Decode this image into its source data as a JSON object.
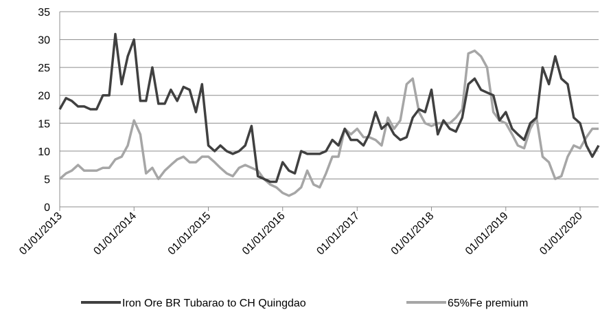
{
  "chart_data": {
    "type": "line",
    "x": [
      "01/01/2013",
      "01/02/2013",
      "01/03/2013",
      "01/04/2013",
      "01/05/2013",
      "01/06/2013",
      "01/07/2013",
      "01/08/2013",
      "01/09/2013",
      "01/10/2013",
      "01/11/2013",
      "01/12/2013",
      "01/01/2014",
      "01/02/2014",
      "01/03/2014",
      "01/04/2014",
      "01/05/2014",
      "01/06/2014",
      "01/07/2014",
      "01/08/2014",
      "01/09/2014",
      "01/10/2014",
      "01/11/2014",
      "01/12/2014",
      "01/01/2015",
      "01/02/2015",
      "01/03/2015",
      "01/04/2015",
      "01/05/2015",
      "01/06/2015",
      "01/07/2015",
      "01/08/2015",
      "01/09/2015",
      "01/10/2015",
      "01/11/2015",
      "01/12/2015",
      "01/01/2016",
      "01/02/2016",
      "01/03/2016",
      "01/04/2016",
      "01/05/2016",
      "01/06/2016",
      "01/07/2016",
      "01/08/2016",
      "01/09/2016",
      "01/10/2016",
      "01/11/2016",
      "01/12/2016",
      "01/01/2017",
      "01/02/2017",
      "01/03/2017",
      "01/04/2017",
      "01/05/2017",
      "01/06/2017",
      "01/07/2017",
      "01/08/2017",
      "01/09/2017",
      "01/10/2017",
      "01/11/2017",
      "01/12/2017",
      "01/01/2018",
      "01/02/2018",
      "01/03/2018",
      "01/04/2018",
      "01/05/2018",
      "01/06/2018",
      "01/07/2018",
      "01/08/2018",
      "01/09/2018",
      "01/10/2018",
      "01/11/2018",
      "01/12/2018",
      "01/01/2019",
      "01/02/2019",
      "01/03/2019",
      "01/04/2019",
      "01/05/2019",
      "01/06/2019",
      "01/07/2019",
      "01/08/2019",
      "01/09/2019",
      "01/10/2019",
      "01/11/2019",
      "01/12/2019",
      "01/01/2020",
      "01/02/2020",
      "01/03/2020",
      "01/04/2020"
    ],
    "series": [
      {
        "name": "Iron Ore BR Tubarao to CH Quingdao",
        "color": "#404040",
        "values": [
          17.5,
          19.5,
          19,
          18,
          18,
          17.5,
          17.5,
          20,
          20,
          31,
          22,
          27,
          30,
          19,
          19,
          25,
          18.5,
          18.5,
          21,
          19,
          21.5,
          21,
          17,
          22,
          11,
          10,
          11,
          10,
          9.5,
          10,
          11,
          14.5,
          5.5,
          5,
          4.5,
          4.5,
          8,
          6.5,
          6,
          10,
          9.5,
          9.5,
          9.5,
          10,
          12,
          11,
          14,
          12,
          12,
          11,
          13,
          17,
          14,
          15,
          13,
          12,
          12.5,
          16,
          17.5,
          17,
          21,
          13,
          15.5,
          14,
          13.5,
          16,
          22,
          23,
          21,
          20.5,
          20,
          15.5,
          17,
          14,
          13,
          12,
          15,
          16,
          25,
          22,
          27,
          23,
          22,
          16,
          15,
          11,
          9,
          11
        ]
      },
      {
        "name": "65%Fe premium",
        "color": "#a6a6a6",
        "values": [
          5,
          6,
          6.5,
          7.5,
          6.5,
          6.5,
          6.5,
          7,
          7,
          8.5,
          9,
          11,
          15.5,
          13,
          6,
          7,
          5,
          6.5,
          7.5,
          8.5,
          9,
          8,
          8,
          9,
          9,
          8,
          7,
          6,
          5.5,
          7,
          7.5,
          7,
          6.5,
          5,
          4,
          3.5,
          2.5,
          2,
          2.5,
          3.5,
          6.5,
          4,
          3.5,
          6,
          9,
          9,
          14,
          13,
          14,
          12.5,
          12.5,
          12,
          11,
          16,
          14,
          15.5,
          22,
          23,
          17,
          15,
          14.5,
          15,
          15,
          15,
          16,
          17.5,
          27.5,
          28,
          27,
          25,
          17,
          15.5,
          15,
          13,
          11,
          10.5,
          14,
          16,
          9,
          8,
          5,
          5.5,
          9,
          11,
          10.5,
          12.5,
          14,
          14
        ]
      }
    ],
    "xlim": [
      "01/01/2013",
      "01/04/2020"
    ],
    "xticks": [
      "01/01/2013",
      "01/01/2014",
      "01/01/2015",
      "01/01/2016",
      "01/01/2017",
      "01/01/2018",
      "01/01/2019",
      "01/01/2020"
    ],
    "ylim": [
      0,
      35
    ],
    "yticks": [
      0,
      5,
      10,
      15,
      20,
      25,
      30,
      35
    ],
    "grid": true,
    "legend": "bottom"
  }
}
